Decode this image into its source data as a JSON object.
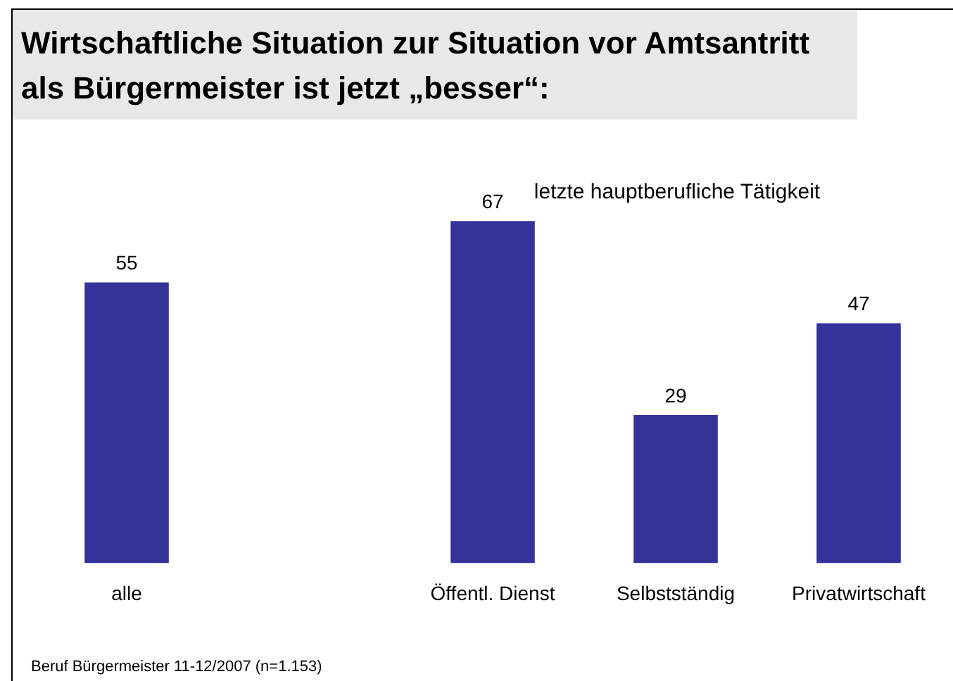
{
  "chart_data": {
    "type": "bar",
    "title": "Wirtschaftliche Situation zur Situation vor Amtsantritt als Bürgermeister ist jetzt „besser“:",
    "subtitle": "letzte hauptberufliche Tätigkeit",
    "categories": [
      "alle",
      null,
      "Öffentl. Dienst",
      "Selbstständig",
      "Privatwirtschaft"
    ],
    "values": [
      55,
      null,
      67,
      29,
      47
    ],
    "color": "#333399",
    "data_labels": true,
    "grid": false,
    "legend": false,
    "annotations": [
      "Beruf Bürgermeister 11-12/2007 (n=1.153)"
    ]
  }
}
